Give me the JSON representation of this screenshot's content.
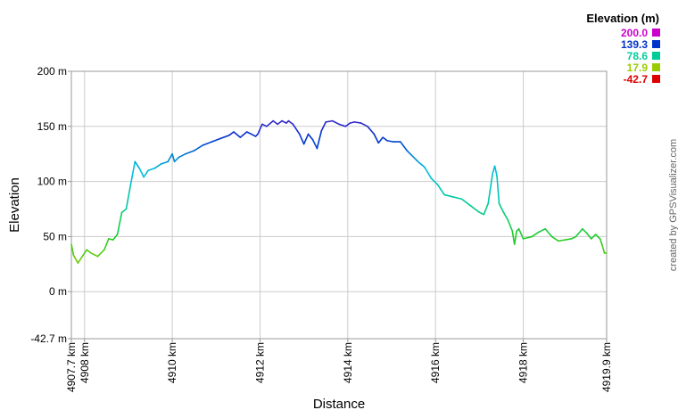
{
  "chart_data": {
    "type": "line",
    "xlabel": "Distance",
    "ylabel": "Elevation",
    "credit": "created by GPSVisualizer.com",
    "xlim": [
      4907.7,
      4919.9
    ],
    "ylim": [
      -42.7,
      200
    ],
    "x_ticks": [
      "4907.7 km",
      "4908 km",
      "4910 km",
      "4912 km",
      "4914 km",
      "4916 km",
      "4918 km",
      "4919.9 km"
    ],
    "x_tick_values": [
      4907.7,
      4908,
      4910,
      4912,
      4914,
      4916,
      4918,
      4919.9
    ],
    "y_ticks": [
      "200 m",
      "150 m",
      "100 m",
      "50 m",
      "0 m",
      "-42.7 m"
    ],
    "y_tick_values": [
      200,
      150,
      100,
      50,
      0,
      -42.7
    ],
    "legend": {
      "title": "Elevation (m)",
      "entries": [
        {
          "label": "200.0",
          "color": "#cc00cc"
        },
        {
          "label": "139.3",
          "color": "#0033cc"
        },
        {
          "label": "78.6",
          "color": "#00cc99"
        },
        {
          "label": "17.9",
          "color": "#99cc00"
        },
        {
          "label": "-42.7",
          "color": "#dd0000"
        }
      ]
    },
    "series": [
      {
        "x": [
          4907.7,
          4907.75,
          4907.85,
          4907.95,
          4908.05,
          4908.15,
          4908.3,
          4908.45,
          4908.55,
          4908.65,
          4908.75,
          4908.85,
          4908.95,
          4909.05,
          4909.15,
          4909.25,
          4909.35,
          4909.45,
          4909.6,
          4909.75,
          4909.9,
          4910.0,
          4910.05,
          4910.15,
          4910.3,
          4910.5,
          4910.7,
          4910.9,
          4911.1,
          4911.3,
          4911.4,
          4911.55,
          4911.7,
          4911.9,
          4911.95,
          4912.05,
          4912.15,
          4912.3,
          4912.4,
          4912.5,
          4912.6,
          4912.65,
          4912.75,
          4912.9,
          4913.0,
          4913.1,
          4913.2,
          4913.3,
          4913.4,
          4913.5,
          4913.65,
          4913.8,
          4913.95,
          4914.05,
          4914.15,
          4914.3,
          4914.45,
          4914.6,
          4914.7,
          4914.8,
          4914.9,
          4915.05,
          4915.2,
          4915.35,
          4915.45,
          4915.6,
          4915.75,
          4915.9,
          4916.05,
          4916.2,
          4916.4,
          4916.6,
          4916.8,
          4917.0,
          4917.1,
          4917.2,
          4917.3,
          4917.35,
          4917.4,
          4917.45,
          4917.55,
          4917.65,
          4917.75,
          4917.8,
          4917.85,
          4917.9,
          4918.0,
          4918.2,
          4918.35,
          4918.5,
          4918.65,
          4918.8,
          4918.95,
          4919.1,
          4919.2,
          4919.35,
          4919.45,
          4919.55,
          4919.65,
          4919.75,
          4919.8,
          4919.85,
          4919.9
        ],
        "y": [
          43,
          33,
          26,
          32,
          38,
          35,
          32,
          38,
          48,
          47,
          52,
          72,
          75,
          97,
          118,
          112,
          104,
          110,
          112,
          116,
          118,
          125,
          118,
          122,
          125,
          128,
          133,
          136,
          139,
          142,
          145,
          140,
          145,
          141,
          143,
          152,
          150,
          155,
          152,
          155,
          153,
          155,
          152,
          143,
          134,
          143,
          138,
          130,
          146,
          154,
          155,
          152,
          150,
          153,
          154,
          153,
          150,
          143,
          135,
          140,
          137,
          136,
          136,
          128,
          124,
          118,
          113,
          103,
          97,
          88,
          86,
          84,
          78,
          72,
          70,
          80,
          107,
          114,
          105,
          80,
          72,
          65,
          55,
          43,
          55,
          57,
          48,
          50,
          54,
          57,
          50,
          46,
          47,
          48,
          50,
          57,
          53,
          48,
          52,
          48,
          42,
          35,
          35
        ]
      }
    ]
  }
}
